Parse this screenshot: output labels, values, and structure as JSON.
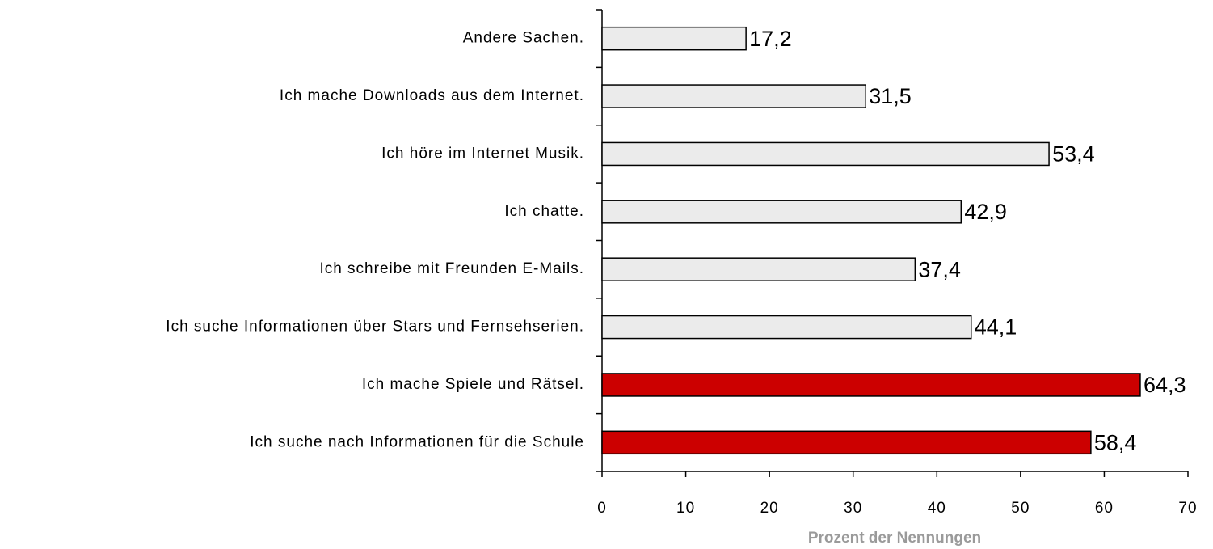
{
  "chart_data": {
    "type": "bar",
    "orientation": "horizontal",
    "categories": [
      "Andere Sachen.",
      "Ich mache Downloads aus dem Internet.",
      "Ich höre im Internet Musik.",
      "Ich chatte.",
      "Ich schreibe mit Freunden E-Mails.",
      "Ich suche Informationen über Stars und Fernsehserien.",
      "Ich mache Spiele und Rätsel.",
      "Ich suche nach Informationen für die Schule"
    ],
    "values": [
      17.2,
      31.5,
      53.4,
      42.9,
      37.4,
      44.1,
      64.3,
      58.4
    ],
    "value_labels": [
      "17,2",
      "31,5",
      "53,4",
      "42,9",
      "37,4",
      "44,1",
      "64,3",
      "58,4"
    ],
    "colors": [
      "#ebebeb",
      "#ebebeb",
      "#ebebeb",
      "#ebebeb",
      "#ebebeb",
      "#ebebeb",
      "#cc0000",
      "#cc0000"
    ],
    "xlim": [
      0,
      70
    ],
    "xticks": [
      0,
      10,
      20,
      30,
      40,
      50,
      60,
      70
    ],
    "xlabel": "Prozent der Nennungen"
  }
}
